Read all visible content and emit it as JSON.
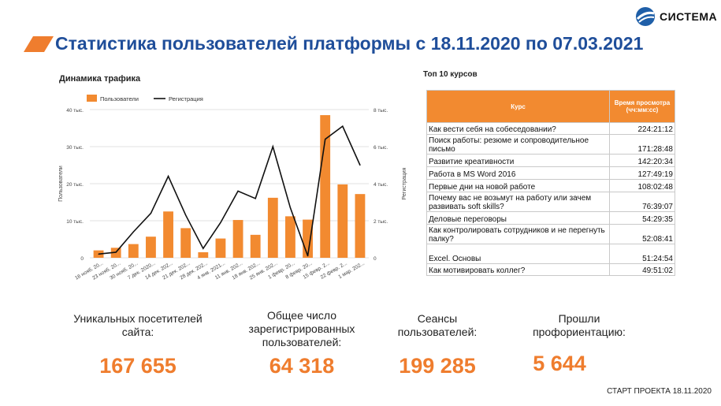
{
  "logo": {
    "name": "СИСТЕМА",
    "icon": "sistema-logo-icon"
  },
  "title": "Статистика пользователей платформы с 18.11.2020 по 07.03.2021",
  "accent_color": "#ef7d2e",
  "title_color": "#1f4e9a",
  "chart_data": {
    "type": "bar",
    "title": "Динамика трафика",
    "categories": [
      "16 нояб. 20...",
      "23 нояб. 20...",
      "30 нояб. 20...",
      "7 дек. 2020...",
      "14 дек. 202...",
      "21 дек. 202...",
      "28 дек. 202...",
      "4 янв. 2021...",
      "11 янв. 202...",
      "18 янв. 202...",
      "25 янв. 202...",
      "1 февр. 20...",
      "8 февр. 20...",
      "15 февр. 2...",
      "22 февр. 2...",
      "1 мар. 202..."
    ],
    "series": [
      {
        "name": "Пользователи",
        "type": "bar",
        "axis": "left",
        "color": "#f28a30",
        "values": [
          2000,
          2700,
          3700,
          5700,
          12500,
          8000,
          1500,
          5200,
          10200,
          6200,
          16200,
          11200,
          10300,
          38500,
          19800,
          17200
        ]
      },
      {
        "name": "Регистрация",
        "type": "line",
        "axis": "right",
        "color": "#111111",
        "values": [
          200,
          300,
          1400,
          2400,
          4400,
          2300,
          500,
          1900,
          3600,
          3200,
          6000,
          2700,
          100,
          6400,
          7100,
          5000
        ]
      }
    ],
    "ylabel": "Пользователи",
    "y2label": "Регистрация",
    "ylim": [
      0,
      40000
    ],
    "y2lim": [
      0,
      8000
    ],
    "yticks": [
      "0",
      "10 тыс.",
      "20 тыс.",
      "30 тыс.",
      "40 тыс."
    ],
    "y2ticks": [
      "0",
      "2 тыс.",
      "4 тыс.",
      "6 тыс.",
      "8 тыс."
    ],
    "legend": "top-left"
  },
  "courses": {
    "title": "Топ 10 курсов",
    "headers": [
      "Курс",
      "Время просмотра (чч:мм:сс)"
    ],
    "rows": [
      {
        "name": "Как вести себя на собеседовании?",
        "time": "224:21:12"
      },
      {
        "name": "Поиск работы: резюме и сопроводительное письмо",
        "time": "171:28:48"
      },
      {
        "name": "Развитие креативности",
        "time": "142:20:34"
      },
      {
        "name": "Работа в MS Word 2016",
        "time": "127:49:19"
      },
      {
        "name": "Первые дни на новой работе",
        "time": "108:02:48"
      },
      {
        "name": "Почему вас не возьмут на работу или зачем развивать soft skills?",
        "time": "76:39:07"
      },
      {
        "name": "Деловые переговоры",
        "time": "54:29:35"
      },
      {
        "name": "Как контролировать сотрудников и не перегнуть палку?",
        "time": "52:08:41"
      },
      {
        "name": "Excel. Основы",
        "time": "51:24:54"
      },
      {
        "name": "Как мотивировать коллег?",
        "time": "49:51:02"
      }
    ]
  },
  "stats": [
    {
      "label": "Уникальных посетителей сайта:",
      "value": "167 655"
    },
    {
      "label": "Общее число зарегистрированных пользователей:",
      "value": "64 318"
    },
    {
      "label": "Сеансы пользователей:",
      "value": "199 285"
    },
    {
      "label": "Прошли профориентацию:",
      "value": "5 644"
    }
  ],
  "footer": "СТАРТ ПРОЕКТА 18.11.2020"
}
